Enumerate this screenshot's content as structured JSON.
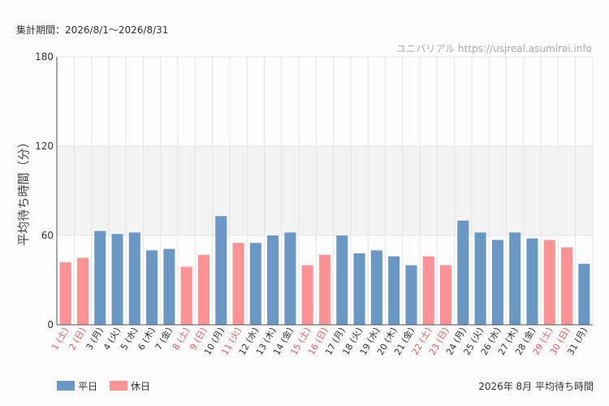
{
  "header": {
    "period": "集計期間：2026/8/1～2026/8/31",
    "watermark": "ユニバリアル  https://usjreal.asumirai.info",
    "footer_title": "2026年 8月 平均待ち時間"
  },
  "colors": {
    "weekday": "#6b97c5",
    "holiday": "#fe9295",
    "holiday_label": "#e35d5d",
    "weekday_label": "#333333",
    "highlight_band": "#f3f3f3",
    "grid": "#e6e6e6"
  },
  "chart_data": {
    "type": "bar",
    "title": "",
    "xlabel": "",
    "ylabel": "平均待ち時間（分）",
    "ylim": [
      0,
      180
    ],
    "yticks": [
      0,
      60,
      120,
      180
    ],
    "highlight_band": [
      60,
      120
    ],
    "grid": true,
    "legend_position": "bottom-left",
    "legend": [
      {
        "name": "平日",
        "color_key": "weekday"
      },
      {
        "name": "休日",
        "color_key": "holiday"
      }
    ],
    "categories": [
      "1 (土)",
      "2 (日)",
      "3 (月)",
      "4 (火)",
      "5 (水)",
      "6 (木)",
      "7 (金)",
      "8 (土)",
      "9 (日)",
      "10 (月)",
      "11 (火)",
      "12 (水)",
      "13 (木)",
      "14 (金)",
      "15 (土)",
      "16 (日)",
      "17 (月)",
      "18 (火)",
      "19 (水)",
      "20 (木)",
      "21 (金)",
      "22 (土)",
      "23 (日)",
      "24 (月)",
      "25 (火)",
      "26 (水)",
      "27 (木)",
      "28 (金)",
      "29 (土)",
      "30 (日)",
      "31 (月)"
    ],
    "values": [
      42,
      45,
      63,
      61,
      62,
      50,
      51,
      39,
      47,
      73,
      55,
      55,
      60,
      62,
      40,
      47,
      60,
      48,
      50,
      46,
      40,
      46,
      40,
      70,
      62,
      57,
      62,
      58,
      57,
      52,
      41
    ],
    "holiday": [
      true,
      true,
      false,
      false,
      false,
      false,
      false,
      true,
      true,
      false,
      true,
      false,
      false,
      false,
      true,
      true,
      false,
      false,
      false,
      false,
      false,
      true,
      true,
      false,
      false,
      false,
      false,
      false,
      true,
      true,
      false
    ]
  }
}
